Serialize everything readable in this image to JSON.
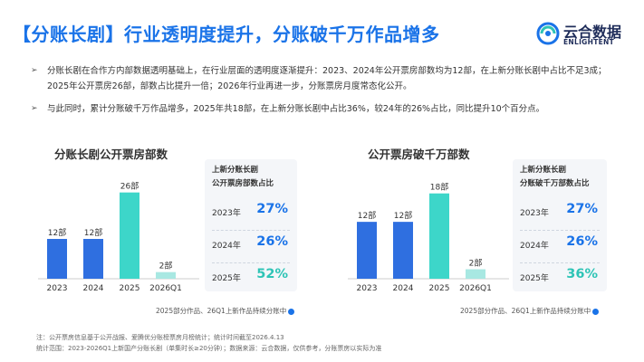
{
  "header": {
    "title": "【分账长剧】行业透明度提升，分账破千万作品增多",
    "logo_text": "云合数据",
    "logo_sub": "ENLIGHTENT"
  },
  "bullets": [
    "分账长剧在合作方内部数据透明基础上，在行业层面的透明度逐渐提升：2023、2024年公开票房部数均为12部，在上新分账长剧中占比不足3成；2025年公开票房26部，部数占比提升一倍；2026年行业再进一步，分账票房月度常态化公开。",
    "与此同时，累计分账破千万作品增多，2025年共18部，在上新分账长剧中占比36%，较24年的26%占比，同比提升10个百分点。"
  ],
  "left_panel": {
    "side_title_1": "上新分账长剧",
    "side_title_2": "公开票房部数占比",
    "rows": [
      {
        "year": "2023年",
        "pct": "27%"
      },
      {
        "year": "2024年",
        "pct": "26%"
      },
      {
        "year": "2025年",
        "pct": "52%"
      }
    ],
    "note": "2025部分作品、26Q1上新作品持续分账中"
  },
  "right_panel": {
    "side_title_1": "上新分账长剧",
    "side_title_2": "分账破千万部数占比",
    "rows": [
      {
        "year": "2023年",
        "pct": "27%"
      },
      {
        "year": "2024年",
        "pct": "26%"
      },
      {
        "year": "2025年",
        "pct": "36%"
      }
    ],
    "note": "2025部分作品、26Q1上新作品持续分账中"
  },
  "footer": {
    "line1": "注：公开票房信息基于公开战报、爱腾优分账榜票房月榜统计；统计时间截至2026.4.13",
    "line2": "统计范围：2023-2026Q1上新国产分账长剧（单集时长≥20分钟）；数据来源：云合数据，仅供参考，分账票房以实际为准"
  },
  "colors": {
    "title": "#1a73e8",
    "bar_blue": "#2f6fe0",
    "bar_teal": "#3dd6c9",
    "bar_light": "#a8e8e2",
    "pct_blue": "#1a73e8",
    "pct_teal": "#2ec4b6"
  },
  "chart_data": [
    {
      "type": "bar",
      "title": "分账长剧公开票房部数",
      "categories": [
        "2023",
        "2024",
        "2025",
        "2026Q1"
      ],
      "values": [
        12,
        12,
        26,
        2
      ],
      "labels": [
        "12部",
        "12部",
        "26部",
        "2部"
      ],
      "ylim": [
        0,
        30
      ]
    },
    {
      "type": "bar",
      "title": "公开票房破千万部数",
      "categories": [
        "2023",
        "2024",
        "2025",
        "2026Q1"
      ],
      "values": [
        12,
        12,
        18,
        2
      ],
      "labels": [
        "12部",
        "12部",
        "18部",
        "2部"
      ],
      "ylim": [
        0,
        21
      ]
    }
  ]
}
